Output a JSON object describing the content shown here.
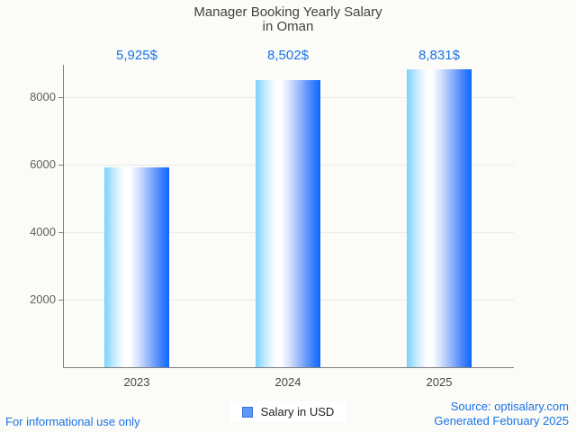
{
  "header": {
    "title_line1": "Manager Booking Yearly Salary",
    "title_line2": "in Oman"
  },
  "chart_data": {
    "type": "bar",
    "title": "Manager Booking Yearly Salary in Oman",
    "categories": [
      "2023",
      "2024",
      "2025"
    ],
    "values": [
      5925,
      8502,
      8831
    ],
    "value_labels": [
      "5,925$",
      "8,502$",
      "8,831$"
    ],
    "series": [
      {
        "name": "Salary in USD",
        "values": [
          5925,
          8502,
          8831
        ]
      }
    ],
    "xlabel": "",
    "ylabel": "",
    "yticks": [
      2000,
      4000,
      6000,
      8000
    ],
    "ylim": [
      0,
      8960
    ],
    "grid": true,
    "legend_position": "bottom",
    "bar_gradient": [
      "#79d1fd",
      "#ffffff",
      "#0b66fe"
    ],
    "value_label_color": "#1a73e8",
    "background_color": "#fbfbf7"
  },
  "legend": {
    "label": "Salary in USD",
    "swatch_color": "#5e97f6"
  },
  "footer": {
    "left": "For informational use only",
    "source": "Source: optisalary.com",
    "generated": "Generated February 2025"
  }
}
